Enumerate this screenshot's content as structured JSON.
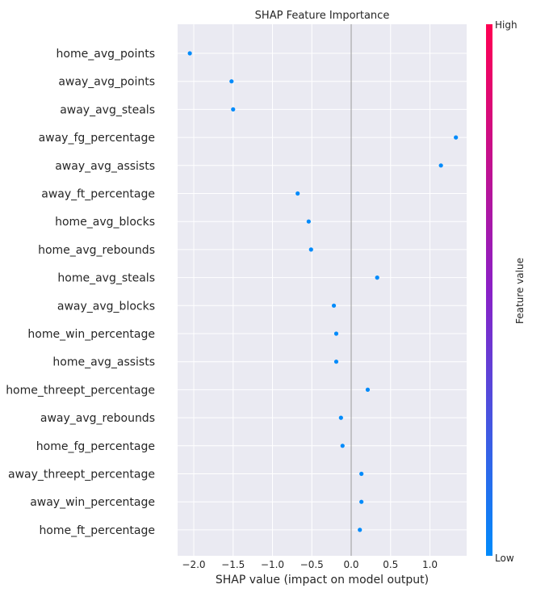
{
  "chart_data": {
    "type": "scatter",
    "title": "SHAP Feature Importance",
    "xlabel": "SHAP value (impact on model output)",
    "xlim": [
      -2.3,
      1.5
    ],
    "xticks": [
      -2.0,
      -1.5,
      -1.0,
      -0.5,
      0.0,
      0.5,
      1.0
    ],
    "xtick_labels": [
      "−2.0",
      "−1.5",
      "−1.0",
      "−0.5",
      "0.0",
      "0.5",
      "1.0"
    ],
    "grid": true,
    "features": [
      {
        "name": "home_avg_points",
        "value": -2.05,
        "feature_value": 0.0
      },
      {
        "name": "away_avg_points",
        "value": -1.52,
        "feature_value": 0.0
      },
      {
        "name": "away_avg_steals",
        "value": -1.5,
        "feature_value": 0.0
      },
      {
        "name": "away_fg_percentage",
        "value": 1.33,
        "feature_value": 0.0
      },
      {
        "name": "away_avg_assists",
        "value": 1.14,
        "feature_value": 0.0
      },
      {
        "name": "away_ft_percentage",
        "value": -0.68,
        "feature_value": 0.0
      },
      {
        "name": "home_avg_blocks",
        "value": -0.54,
        "feature_value": 0.0
      },
      {
        "name": "home_avg_rebounds",
        "value": -0.51,
        "feature_value": 0.0
      },
      {
        "name": "home_avg_steals",
        "value": 0.33,
        "feature_value": 0.0
      },
      {
        "name": "away_avg_blocks",
        "value": -0.22,
        "feature_value": 0.0
      },
      {
        "name": "home_win_percentage",
        "value": -0.19,
        "feature_value": 0.0
      },
      {
        "name": "home_avg_assists",
        "value": -0.19,
        "feature_value": 0.0
      },
      {
        "name": "home_threept_percentage",
        "value": 0.21,
        "feature_value": 0.0
      },
      {
        "name": "away_avg_rebounds",
        "value": -0.13,
        "feature_value": 0.0
      },
      {
        "name": "home_fg_percentage",
        "value": -0.11,
        "feature_value": 0.0
      },
      {
        "name": "away_threept_percentage",
        "value": 0.13,
        "feature_value": 0.0
      },
      {
        "name": "away_win_percentage",
        "value": 0.13,
        "feature_value": 0.0
      },
      {
        "name": "home_ft_percentage",
        "value": 0.11,
        "feature_value": 0.0
      }
    ],
    "colorbar": {
      "label": "Feature value",
      "high_label": "High",
      "low_label": "Low",
      "low_color": "#008bfb",
      "high_color": "#ff0052"
    },
    "colors": {
      "plot_background": "#eaeaf2",
      "grid": "#ffffff",
      "zero_line": "#999999"
    }
  }
}
